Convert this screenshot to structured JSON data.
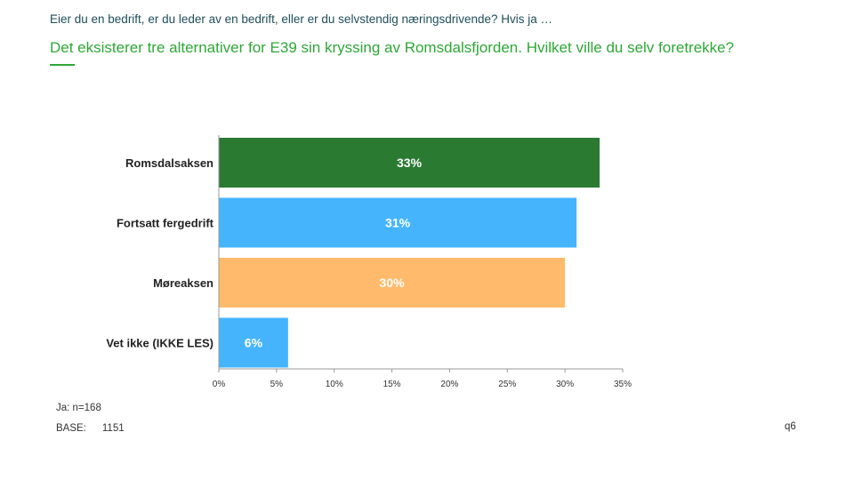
{
  "header": {
    "intro": "Eier du en bedrift, er du leder av en bedrift, eller er du selvstendig næringsdrivende? Hvis ja …",
    "question": "Det eksisterer tre alternativer for E39 sin kryssing av Romsdalsfjorden. Hvilket ville du selv foretrekke?"
  },
  "chart_data": {
    "type": "bar",
    "orientation": "horizontal",
    "categories": [
      "Romsdalsaksen",
      "Fortsatt fergedrift",
      "Møreaksen",
      "Vet ikke (IKKE LES)"
    ],
    "values": [
      33,
      31,
      30,
      6
    ],
    "labels": [
      "33%",
      "31%",
      "30%",
      "6%"
    ],
    "colors": [
      "#2b7a32",
      "#45b4fd",
      "#ffbb6b",
      "#45b4fd"
    ],
    "label_color": "#ffffff",
    "xlim": [
      0,
      35
    ],
    "xticks": [
      0,
      5,
      10,
      15,
      20,
      25,
      30,
      35
    ],
    "xtick_labels": [
      "0%",
      "5%",
      "10%",
      "15%",
      "20%",
      "25%",
      "30%",
      "35%"
    ],
    "title": "",
    "xlabel": "",
    "ylabel": "",
    "grid": false,
    "legend": "none"
  },
  "footer": {
    "n_label": "Ja: n=168",
    "base_label": "BASE:",
    "base_value": "1151",
    "question_code": "q6"
  }
}
